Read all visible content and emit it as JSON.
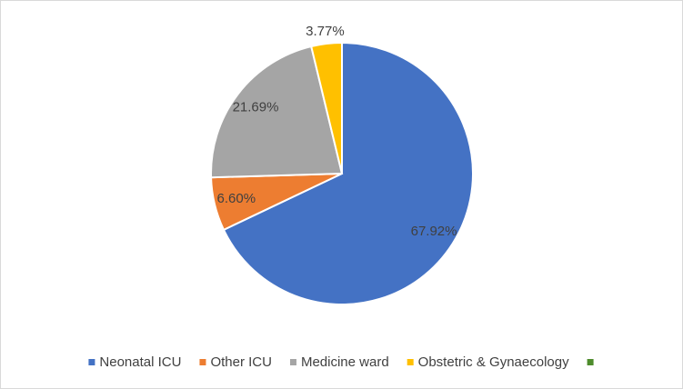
{
  "chart_data": {
    "type": "pie",
    "categories": [
      "Neonatal ICU",
      "Other ICU",
      "Medicine ward",
      "Obstetric & Gynaecology",
      null
    ],
    "values": [
      67.92,
      6.6,
      21.69,
      3.77,
      0
    ],
    "value_labels": [
      "67.92%",
      "6.60%",
      "21.69%",
      "3.77%",
      null
    ],
    "colors": [
      "#4472c4",
      "#ed7d31",
      "#a5a5a5",
      "#ffc000",
      "#4e8c2c"
    ],
    "legend": "bottom"
  }
}
